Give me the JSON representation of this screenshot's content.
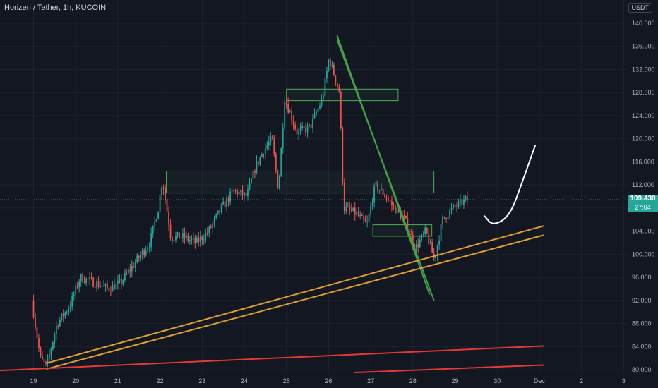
{
  "header": {
    "symbol_title": "Horizen / Tether, 1h, KUCOIN",
    "currency": "USDT"
  },
  "price_tag": {
    "price": "109.430",
    "countdown": "27:04"
  },
  "colors": {
    "background": "#131722",
    "grid": "#1e2230",
    "up": "#26a69a",
    "down": "#ef5350",
    "zone_border": "#4caf50",
    "downtrend": "#43a047",
    "uptrend_channel": "#e0a030",
    "support_red": "#e53935",
    "projection": "#ffffff"
  },
  "chart_data": {
    "type": "candlestick",
    "title": "Horizen / Tether, 1h, KUCOIN",
    "y_axis": {
      "ticks": [
        "140.000",
        "136.000",
        "132.000",
        "128.000",
        "124.000",
        "120.000",
        "116.000",
        "112.000",
        "108.000",
        "104.000",
        "100.000",
        "96.000",
        "92.000",
        "88.000",
        "84.000",
        "80.000"
      ],
      "range": [
        80,
        140
      ]
    },
    "x_axis": {
      "ticks": [
        "19",
        "20",
        "21",
        "22",
        "23",
        "24",
        "25",
        "26",
        "27",
        "28",
        "29",
        "30",
        "Dec",
        "2",
        "3"
      ]
    },
    "last_price": 109.43,
    "price_path": [
      {
        "x": 19.0,
        "y": 92
      },
      {
        "x": 19.2,
        "y": 82
      },
      {
        "x": 19.35,
        "y": 80.5
      },
      {
        "x": 19.6,
        "y": 88
      },
      {
        "x": 19.9,
        "y": 91
      },
      {
        "x": 20.15,
        "y": 96
      },
      {
        "x": 20.5,
        "y": 95
      },
      {
        "x": 20.8,
        "y": 94
      },
      {
        "x": 21.1,
        "y": 95
      },
      {
        "x": 21.5,
        "y": 99
      },
      {
        "x": 21.8,
        "y": 102
      },
      {
        "x": 22.0,
        "y": 108
      },
      {
        "x": 22.1,
        "y": 113
      },
      {
        "x": 22.3,
        "y": 103
      },
      {
        "x": 22.6,
        "y": 103
      },
      {
        "x": 22.9,
        "y": 102
      },
      {
        "x": 23.2,
        "y": 104
      },
      {
        "x": 23.5,
        "y": 108
      },
      {
        "x": 23.8,
        "y": 111
      },
      {
        "x": 24.1,
        "y": 110
      },
      {
        "x": 24.3,
        "y": 115
      },
      {
        "x": 24.5,
        "y": 118
      },
      {
        "x": 24.7,
        "y": 120
      },
      {
        "x": 24.85,
        "y": 111
      },
      {
        "x": 25.0,
        "y": 127
      },
      {
        "x": 25.3,
        "y": 121
      },
      {
        "x": 25.6,
        "y": 122
      },
      {
        "x": 25.9,
        "y": 127
      },
      {
        "x": 26.05,
        "y": 134
      },
      {
        "x": 26.3,
        "y": 128
      },
      {
        "x": 26.4,
        "y": 108
      },
      {
        "x": 26.7,
        "y": 107
      },
      {
        "x": 26.95,
        "y": 105
      },
      {
        "x": 27.15,
        "y": 112
      },
      {
        "x": 27.4,
        "y": 110
      },
      {
        "x": 27.6,
        "y": 108
      },
      {
        "x": 27.85,
        "y": 106
      },
      {
        "x": 28.1,
        "y": 101
      },
      {
        "x": 28.35,
        "y": 104
      },
      {
        "x": 28.55,
        "y": 99
      },
      {
        "x": 28.75,
        "y": 106
      },
      {
        "x": 29.0,
        "y": 108
      },
      {
        "x": 29.3,
        "y": 109.43
      }
    ],
    "zones": [
      {
        "x0": 25.0,
        "x1": 27.65,
        "y0": 126.6,
        "y1": 128.6
      },
      {
        "x0": 22.15,
        "x1": 28.5,
        "y0": 110.6,
        "y1": 114.4
      },
      {
        "x0": 27.05,
        "x1": 28.45,
        "y0": 103.1,
        "y1": 105.1
      }
    ],
    "lines": [
      {
        "name": "downtrend",
        "points": [
          [
            26.2,
            137.9
          ],
          [
            28.4,
            93
          ]
        ]
      },
      {
        "name": "downtrend",
        "points": [
          [
            26.2,
            137.2
          ],
          [
            28.5,
            92
          ]
        ]
      },
      {
        "name": "uptrend",
        "points": [
          [
            19.3,
            81.1
          ],
          [
            31.1,
            104.9
          ]
        ]
      },
      {
        "name": "uptrend",
        "points": [
          [
            19.3,
            80.1
          ],
          [
            31.1,
            103.3
          ]
        ]
      },
      {
        "name": "support",
        "points": [
          [
            17.7,
            79.7
          ],
          [
            31.1,
            84.1
          ]
        ]
      },
      {
        "name": "support",
        "points": [
          [
            26.6,
            79.5
          ],
          [
            31.1,
            80.8
          ]
        ]
      }
    ],
    "projection": [
      [
        29.7,
        106.6
      ],
      [
        29.9,
        104.9
      ],
      [
        30.3,
        106.6
      ],
      [
        30.6,
        112.6
      ],
      [
        30.9,
        118.8
      ]
    ],
    "grid": true
  }
}
